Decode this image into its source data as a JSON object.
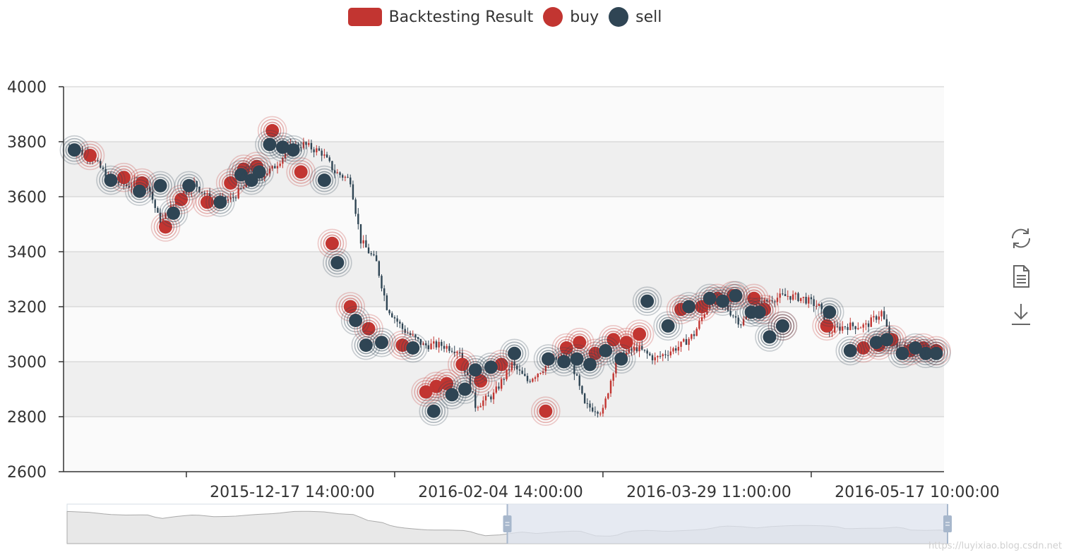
{
  "legend": {
    "items": [
      {
        "label": "Backtesting Result",
        "color": "#c23531",
        "shape": "rect"
      },
      {
        "label": "buy",
        "color": "#c23531",
        "shape": "circle"
      },
      {
        "label": "sell",
        "color": "#2f4554",
        "shape": "circle"
      }
    ]
  },
  "toolbox": {
    "icons": [
      "restore-icon",
      "data-view-icon",
      "save-image-icon"
    ]
  },
  "watermark": "https://luyixiao.blog.csdn.net",
  "colors": {
    "up": "#c23531",
    "down": "#2f4554",
    "band": "#efefef",
    "band_alt": "#fafafa",
    "slider_fill": "#dde3ee",
    "slider_handle": "#a7b7cc"
  },
  "chart_data": {
    "type": "candlestick",
    "ylim": [
      2600,
      4000
    ],
    "yticks": [
      2600,
      2800,
      3000,
      3200,
      3400,
      3600,
      3800,
      4000
    ],
    "xticks": [
      {
        "label": "2015-12-17 14:00:00",
        "index": 30
      },
      {
        "label": "2016-02-04 14:00:00",
        "index": 110
      },
      {
        "label": "2016-03-29 11:00:00",
        "index": 190
      },
      {
        "label": "2016-05-17 10:00:00",
        "index": 270
      }
    ],
    "n_candles": 330,
    "close_curve": [
      [
        0,
        3780
      ],
      [
        8,
        3750
      ],
      [
        15,
        3670
      ],
      [
        22,
        3640
      ],
      [
        30,
        3650
      ],
      [
        35,
        3500
      ],
      [
        42,
        3600
      ],
      [
        48,
        3650
      ],
      [
        55,
        3580
      ],
      [
        62,
        3590
      ],
      [
        70,
        3660
      ],
      [
        78,
        3700
      ],
      [
        85,
        3780
      ],
      [
        90,
        3790
      ],
      [
        97,
        3760
      ],
      [
        102,
        3690
      ],
      [
        108,
        3660
      ],
      [
        112,
        3440
      ],
      [
        118,
        3360
      ],
      [
        122,
        3200
      ],
      [
        128,
        3120
      ],
      [
        136,
        3060
      ],
      [
        143,
        3060
      ],
      [
        150,
        3040
      ],
      [
        156,
        2840
      ],
      [
        163,
        2880
      ],
      [
        170,
        2990
      ],
      [
        176,
        2930
      ],
      [
        185,
        3000
      ],
      [
        192,
        3030
      ],
      [
        198,
        2840
      ],
      [
        205,
        2820
      ],
      [
        210,
        3010
      ],
      [
        218,
        3050
      ],
      [
        225,
        3010
      ],
      [
        235,
        3060
      ],
      [
        240,
        3100
      ],
      [
        246,
        3220
      ],
      [
        252,
        3200
      ],
      [
        258,
        3140
      ],
      [
        264,
        3200
      ],
      [
        270,
        3230
      ],
      [
        276,
        3240
      ],
      [
        282,
        3230
      ],
      [
        288,
        3200
      ],
      [
        292,
        3110
      ],
      [
        298,
        3130
      ],
      [
        306,
        3130
      ],
      [
        312,
        3180
      ],
      [
        316,
        3060
      ],
      [
        322,
        3050
      ],
      [
        328,
        3060
      ],
      [
        336,
        3050
      ],
      [
        330,
        3030
      ]
    ],
    "buy_points": [
      {
        "i": 8,
        "v": 3750
      },
      {
        "i": 21,
        "v": 3670
      },
      {
        "i": 28,
        "v": 3650
      },
      {
        "i": 37,
        "v": 3490
      },
      {
        "i": 43,
        "v": 3590
      },
      {
        "i": 53,
        "v": 3580
      },
      {
        "i": 62,
        "v": 3650
      },
      {
        "i": 67,
        "v": 3700
      },
      {
        "i": 72,
        "v": 3710
      },
      {
        "i": 78,
        "v": 3840
      },
      {
        "i": 89,
        "v": 3690
      },
      {
        "i": 101,
        "v": 3430
      },
      {
        "i": 108,
        "v": 3200
      },
      {
        "i": 115,
        "v": 3120
      },
      {
        "i": 128,
        "v": 3060
      },
      {
        "i": 137,
        "v": 2890
      },
      {
        "i": 141,
        "v": 2910
      },
      {
        "i": 145,
        "v": 2920
      },
      {
        "i": 151,
        "v": 2990
      },
      {
        "i": 158,
        "v": 2930
      },
      {
        "i": 166,
        "v": 2990
      },
      {
        "i": 183,
        "v": 2820
      },
      {
        "i": 191,
        "v": 3050
      },
      {
        "i": 196,
        "v": 3070
      },
      {
        "i": 202,
        "v": 3030
      },
      {
        "i": 209,
        "v": 3080
      },
      {
        "i": 214,
        "v": 3070
      },
      {
        "i": 219,
        "v": 3100
      },
      {
        "i": 235,
        "v": 3190
      },
      {
        "i": 243,
        "v": 3200
      },
      {
        "i": 249,
        "v": 3230
      },
      {
        "i": 255,
        "v": 3240
      },
      {
        "i": 263,
        "v": 3230
      },
      {
        "i": 267,
        "v": 3190
      },
      {
        "i": 274,
        "v": 3130
      },
      {
        "i": 291,
        "v": 3130
      },
      {
        "i": 305,
        "v": 3050
      },
      {
        "i": 311,
        "v": 3060
      },
      {
        "i": 316,
        "v": 3080
      },
      {
        "i": 323,
        "v": 3040
      },
      {
        "i": 328,
        "v": 3050
      },
      {
        "i": 333,
        "v": 3040
      }
    ],
    "sell_points": [
      {
        "i": 2,
        "v": 3770
      },
      {
        "i": 16,
        "v": 3660
      },
      {
        "i": 27,
        "v": 3620
      },
      {
        "i": 35,
        "v": 3640
      },
      {
        "i": 40,
        "v": 3540
      },
      {
        "i": 46,
        "v": 3640
      },
      {
        "i": 58,
        "v": 3580
      },
      {
        "i": 66,
        "v": 3680
      },
      {
        "i": 70,
        "v": 3660
      },
      {
        "i": 73,
        "v": 3690
      },
      {
        "i": 77,
        "v": 3790
      },
      {
        "i": 82,
        "v": 3780
      },
      {
        "i": 86,
        "v": 3770
      },
      {
        "i": 98,
        "v": 3660
      },
      {
        "i": 103,
        "v": 3360
      },
      {
        "i": 110,
        "v": 3150
      },
      {
        "i": 114,
        "v": 3060
      },
      {
        "i": 120,
        "v": 3070
      },
      {
        "i": 132,
        "v": 3050
      },
      {
        "i": 140,
        "v": 2820
      },
      {
        "i": 147,
        "v": 2880
      },
      {
        "i": 152,
        "v": 2900
      },
      {
        "i": 156,
        "v": 2970
      },
      {
        "i": 162,
        "v": 2980
      },
      {
        "i": 171,
        "v": 3030
      },
      {
        "i": 184,
        "v": 3010
      },
      {
        "i": 190,
        "v": 3000
      },
      {
        "i": 195,
        "v": 3010
      },
      {
        "i": 200,
        "v": 2990
      },
      {
        "i": 206,
        "v": 3040
      },
      {
        "i": 212,
        "v": 3010
      },
      {
        "i": 222,
        "v": 3220
      },
      {
        "i": 230,
        "v": 3130
      },
      {
        "i": 238,
        "v": 3200
      },
      {
        "i": 246,
        "v": 3230
      },
      {
        "i": 251,
        "v": 3220
      },
      {
        "i": 256,
        "v": 3240
      },
      {
        "i": 262,
        "v": 3180
      },
      {
        "i": 265,
        "v": 3180
      },
      {
        "i": 269,
        "v": 3090
      },
      {
        "i": 274,
        "v": 3130
      },
      {
        "i": 292,
        "v": 3180
      },
      {
        "i": 300,
        "v": 3040
      },
      {
        "i": 310,
        "v": 3070
      },
      {
        "i": 314,
        "v": 3080
      },
      {
        "i": 320,
        "v": 3030
      },
      {
        "i": 325,
        "v": 3050
      },
      {
        "i": 329,
        "v": 3030
      },
      {
        "i": 333,
        "v": 3030
      }
    ],
    "zoom": {
      "start": 0.5,
      "end": 1.0
    }
  }
}
